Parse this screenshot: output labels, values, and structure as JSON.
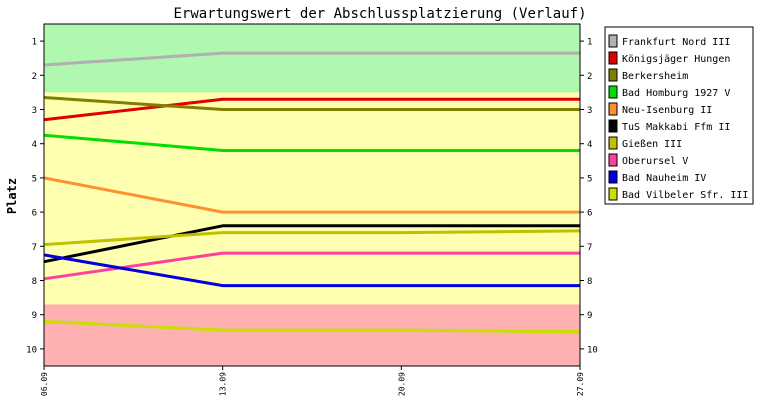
{
  "chart_data": {
    "type": "line",
    "title": "Erwartungswert der Abschlussplatzierung (Verlauf)",
    "ylabel": "Platz",
    "xlabel": "",
    "x": [
      "06.09",
      "13.09",
      "20.09",
      "27.09"
    ],
    "x_values": [
      0,
      7,
      14,
      21
    ],
    "ylim": [
      10.5,
      0.5
    ],
    "y_inverted": true,
    "y_ticks": [
      "1",
      "2",
      "3",
      "4",
      "5",
      "6",
      "7",
      "8",
      "9",
      "10"
    ],
    "zones": [
      {
        "from": 0.5,
        "to": 2.5,
        "color": "#b0f8b0"
      },
      {
        "from": 2.5,
        "to": 8.7,
        "color": "#ffffb0"
      },
      {
        "from": 8.7,
        "to": 10.5,
        "color": "#ffb0b0"
      }
    ],
    "legend_position": "right",
    "series": [
      {
        "name": "Frankfurt Nord III",
        "color": "#b0b0b0",
        "points": [
          [
            0,
            1.7
          ],
          [
            7,
            1.35
          ],
          [
            14,
            1.35
          ],
          [
            21,
            1.35
          ]
        ]
      },
      {
        "name": "Königsjäger Hungen",
        "color": "#e00000",
        "points": [
          [
            0,
            3.3
          ],
          [
            7,
            2.7
          ],
          [
            14,
            2.7
          ],
          [
            21,
            2.7
          ]
        ]
      },
      {
        "name": "Berkersheim",
        "color": "#808000",
        "points": [
          [
            0,
            2.65
          ],
          [
            7,
            3.0
          ],
          [
            14,
            3.0
          ],
          [
            21,
            3.0
          ]
        ]
      },
      {
        "name": "Bad Homburg 1927 V",
        "color": "#00e000",
        "points": [
          [
            0,
            3.75
          ],
          [
            7,
            4.2
          ],
          [
            14,
            4.2
          ],
          [
            21,
            4.2
          ]
        ]
      },
      {
        "name": "Neu-Isenburg II",
        "color": "#ff9030",
        "points": [
          [
            0,
            5.0
          ],
          [
            7,
            6.0
          ],
          [
            14,
            6.0
          ],
          [
            21,
            6.0
          ]
        ]
      },
      {
        "name": "TuS Makkabi Ffm II",
        "color": "#000000",
        "points": [
          [
            0,
            7.45
          ],
          [
            7,
            6.4
          ],
          [
            14,
            6.4
          ],
          [
            21,
            6.4
          ]
        ]
      },
      {
        "name": "Gießen III",
        "color": "#c0c000",
        "points": [
          [
            0,
            6.95
          ],
          [
            7,
            6.6
          ],
          [
            14,
            6.6
          ],
          [
            21,
            6.55
          ]
        ]
      },
      {
        "name": "Oberursel V",
        "color": "#ff40a0",
        "points": [
          [
            0,
            7.95
          ],
          [
            7,
            7.2
          ],
          [
            14,
            7.2
          ],
          [
            21,
            7.2
          ]
        ]
      },
      {
        "name": "Bad Nauheim IV",
        "color": "#0000e0",
        "points": [
          [
            0,
            7.25
          ],
          [
            7,
            8.15
          ],
          [
            14,
            8.15
          ],
          [
            21,
            8.15
          ]
        ]
      },
      {
        "name": "Bad Vilbeler Sfr. III",
        "color": "#c8e000",
        "points": [
          [
            0,
            9.2
          ],
          [
            7,
            9.45
          ],
          [
            14,
            9.45
          ],
          [
            21,
            9.5
          ]
        ]
      }
    ]
  }
}
